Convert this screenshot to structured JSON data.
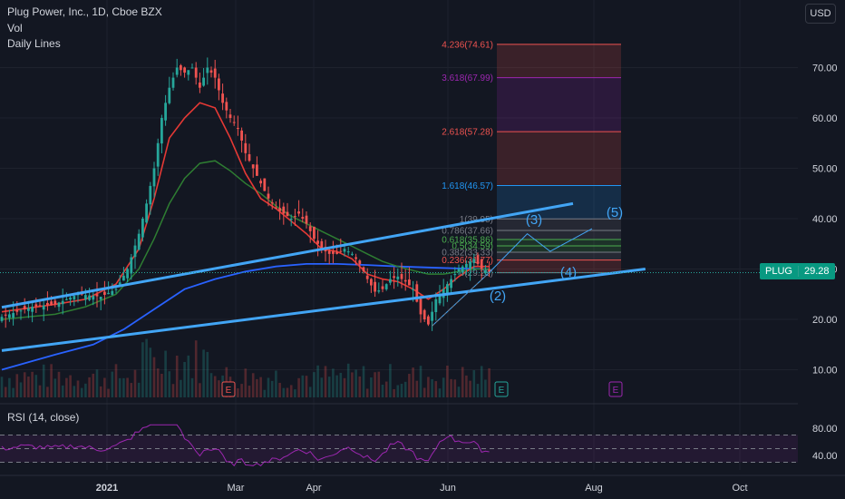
{
  "header": {
    "title": "Plug Power, Inc., 1D, Cboe BZX",
    "vol_label": "Vol",
    "lines_label": "Daily Lines"
  },
  "currency": "USD",
  "price_badge": {
    "symbol": "PLUG",
    "value": "29.28"
  },
  "rsi": {
    "label": "RSI (14, close)",
    "ticks": [
      "80.00",
      "40.00"
    ],
    "values": [
      80,
      40
    ]
  },
  "colors": {
    "background": "#131722",
    "grid": "#1e222d",
    "up": "#26a69a",
    "down": "#ef5350",
    "ma_red": "#e53935",
    "ma_green": "#2e7d32",
    "ma_blue": "#2962ff",
    "trend": "#42a5f5",
    "rsi": "#9c27b0",
    "wave": "#42a5f5"
  },
  "chart_data": {
    "type": "candlestick",
    "title": "Plug Power, Inc., 1D, Cboe BZX",
    "y_ticks": [
      "70.00",
      "60.00",
      "50.00",
      "40.00",
      "30.00",
      "20.00",
      "10.00"
    ],
    "y_tick_values": [
      70,
      60,
      50,
      40,
      30,
      20,
      10
    ],
    "x_ticks": [
      "2021",
      "Mar",
      "Apr",
      "Jun",
      "Aug",
      "Oct"
    ],
    "last_price": 29.28,
    "fib_levels": [
      {
        "label": "4.236(74.61)",
        "value": 74.61,
        "color": "#ef5350"
      },
      {
        "label": "3.618(67.99)",
        "value": 67.99,
        "color": "#9c27b0"
      },
      {
        "label": "2.618(57.28)",
        "value": 57.28,
        "color": "#ef5350"
      },
      {
        "label": "1.618(46.57)",
        "value": 46.57,
        "color": "#2196f3"
      },
      {
        "label": "1(39.95)",
        "value": 39.95,
        "color": "#787b86"
      },
      {
        "label": "0.786(37.66)",
        "value": 37.66,
        "color": "#787b86"
      },
      {
        "label": "0.618(35.86)",
        "value": 35.86,
        "color": "#4caf50"
      },
      {
        "label": "0.5(34.59)",
        "value": 34.59,
        "color": "#4caf50"
      },
      {
        "label": "0.382(33.33)",
        "value": 33.33,
        "color": "#787b86"
      },
      {
        "label": "0.236(31.77)",
        "value": 31.77,
        "color": "#ef5350"
      },
      {
        "label": "0(29.25)",
        "value": 29.25,
        "color": "#787b86"
      }
    ],
    "waves": [
      "(2)",
      "(3)",
      "(4)",
      "(5)"
    ],
    "earnings_marker": "E",
    "price_path": [
      [
        0,
        20.5
      ],
      [
        8,
        22.5
      ],
      [
        14,
        23
      ],
      [
        20,
        25
      ],
      [
        26,
        24.5
      ],
      [
        30,
        26
      ],
      [
        33,
        30
      ],
      [
        36,
        37
      ],
      [
        38,
        43
      ],
      [
        40,
        50
      ],
      [
        42,
        60
      ],
      [
        44,
        66
      ],
      [
        46,
        70
      ],
      [
        48,
        69
      ],
      [
        50,
        70
      ],
      [
        52,
        66
      ],
      [
        54,
        70
      ],
      [
        56,
        68
      ],
      [
        58,
        63
      ],
      [
        60,
        60
      ],
      [
        62,
        58
      ],
      [
        64,
        53
      ],
      [
        66,
        50
      ],
      [
        68,
        47
      ],
      [
        70,
        44
      ],
      [
        72,
        42
      ],
      [
        74,
        41
      ],
      [
        76,
        40
      ],
      [
        78,
        41
      ],
      [
        80,
        39
      ],
      [
        82,
        36
      ],
      [
        84,
        34
      ],
      [
        86,
        33
      ],
      [
        88,
        33
      ],
      [
        90,
        34
      ],
      [
        92,
        33
      ],
      [
        94,
        31
      ],
      [
        96,
        28
      ],
      [
        98,
        25.5
      ],
      [
        100,
        26
      ],
      [
        102,
        28
      ],
      [
        104,
        28.5
      ],
      [
        106,
        27.5
      ],
      [
        108,
        26
      ],
      [
        110,
        21
      ],
      [
        112,
        19
      ],
      [
        114,
        24
      ],
      [
        116,
        26
      ],
      [
        118,
        28
      ],
      [
        120,
        30
      ],
      [
        122,
        31
      ],
      [
        124,
        32
      ],
      [
        126,
        30
      ],
      [
        128,
        29.5
      ]
    ],
    "ma_red": [
      [
        0,
        21.5
      ],
      [
        14,
        23
      ],
      [
        22,
        24
      ],
      [
        30,
        27
      ],
      [
        36,
        34
      ],
      [
        40,
        44
      ],
      [
        44,
        56
      ],
      [
        48,
        60
      ],
      [
        52,
        63
      ],
      [
        56,
        62
      ],
      [
        60,
        56
      ],
      [
        64,
        49
      ],
      [
        68,
        44
      ],
      [
        72,
        42
      ],
      [
        76,
        39.5
      ],
      [
        80,
        37
      ],
      [
        84,
        34
      ],
      [
        88,
        33.5
      ],
      [
        92,
        32
      ],
      [
        96,
        29
      ],
      [
        100,
        28
      ],
      [
        104,
        27.5
      ],
      [
        108,
        26
      ],
      [
        112,
        24
      ],
      [
        116,
        26
      ],
      [
        120,
        28.5
      ],
      [
        124,
        30.5
      ],
      [
        128,
        30.5
      ]
    ],
    "ma_green": [
      [
        0,
        20
      ],
      [
        14,
        21
      ],
      [
        22,
        22.5
      ],
      [
        30,
        25
      ],
      [
        36,
        30
      ],
      [
        40,
        36
      ],
      [
        44,
        43
      ],
      [
        48,
        48
      ],
      [
        52,
        51
      ],
      [
        56,
        51.5
      ],
      [
        60,
        49.5
      ],
      [
        64,
        47
      ],
      [
        68,
        45
      ],
      [
        72,
        42.5
      ],
      [
        76,
        40.5
      ],
      [
        80,
        39
      ],
      [
        84,
        37.5
      ],
      [
        88,
        36
      ],
      [
        92,
        34.5
      ],
      [
        96,
        33
      ],
      [
        100,
        31.5
      ],
      [
        104,
        30.5
      ],
      [
        108,
        29.7
      ],
      [
        112,
        29
      ],
      [
        116,
        29
      ],
      [
        120,
        29.5
      ],
      [
        124,
        30
      ],
      [
        128,
        30
      ]
    ],
    "ma_blue": [
      [
        0,
        10
      ],
      [
        14,
        13
      ],
      [
        24,
        15
      ],
      [
        32,
        18
      ],
      [
        40,
        22
      ],
      [
        48,
        26
      ],
      [
        56,
        28
      ],
      [
        64,
        29.5
      ],
      [
        72,
        30.5
      ],
      [
        80,
        31
      ],
      [
        88,
        31
      ],
      [
        96,
        30.8
      ],
      [
        104,
        30.5
      ],
      [
        112,
        30.3
      ],
      [
        120,
        30.1
      ],
      [
        128,
        30
      ]
    ],
    "trendline_upper": [
      [
        0,
        22.4
      ],
      [
        150,
        43
      ]
    ],
    "trendline_lower": [
      [
        0,
        13.8
      ],
      [
        169,
        30
      ]
    ],
    "wave_path": [
      [
        113,
        18.7
      ],
      [
        128,
        29.3
      ],
      [
        138,
        37
      ],
      [
        144,
        33.5
      ],
      [
        155,
        38
      ]
    ]
  }
}
